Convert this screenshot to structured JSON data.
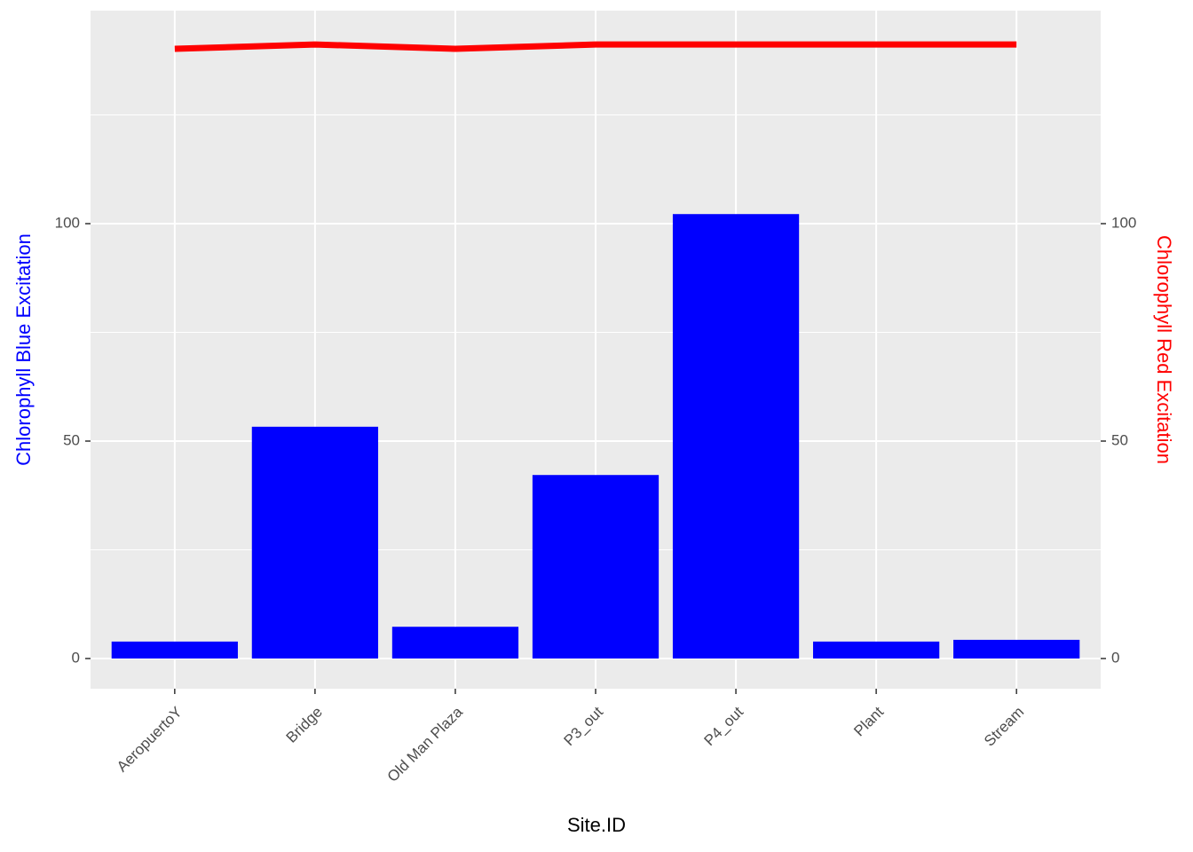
{
  "chart_data": {
    "type": "bar",
    "x_label": "Site.ID",
    "y_label": "Chlorophyll Blue Excitation",
    "y2_label": "Chlorophyll Red Excitation",
    "categories": [
      "AeropuertoY",
      "Bridge",
      "Old Man Plaza",
      "P3_out",
      "P4_out",
      "Plant",
      "Stream"
    ],
    "series": [
      {
        "name": "Chlorophyll Blue Excitation",
        "type": "bar",
        "color": "#0000ff",
        "values": [
          3.9,
          53.3,
          7.3,
          42.2,
          102.2,
          3.9,
          4.3
        ]
      },
      {
        "name": "Chlorophyll Red Excitation",
        "type": "line",
        "axis": "y2",
        "color": "#ff0000",
        "values": [
          140.2,
          141.2,
          140.2,
          141.2,
          141.2,
          141.2,
          141.2
        ]
      }
    ],
    "ylim": [
      -6.94,
      148.98
    ],
    "yticks": [
      0,
      50,
      100
    ],
    "y2lim": [
      -6.94,
      148.98
    ],
    "y2ticks": [
      0,
      50,
      100
    ],
    "minor_gridlines": [
      25,
      75,
      125
    ],
    "grid": true
  }
}
